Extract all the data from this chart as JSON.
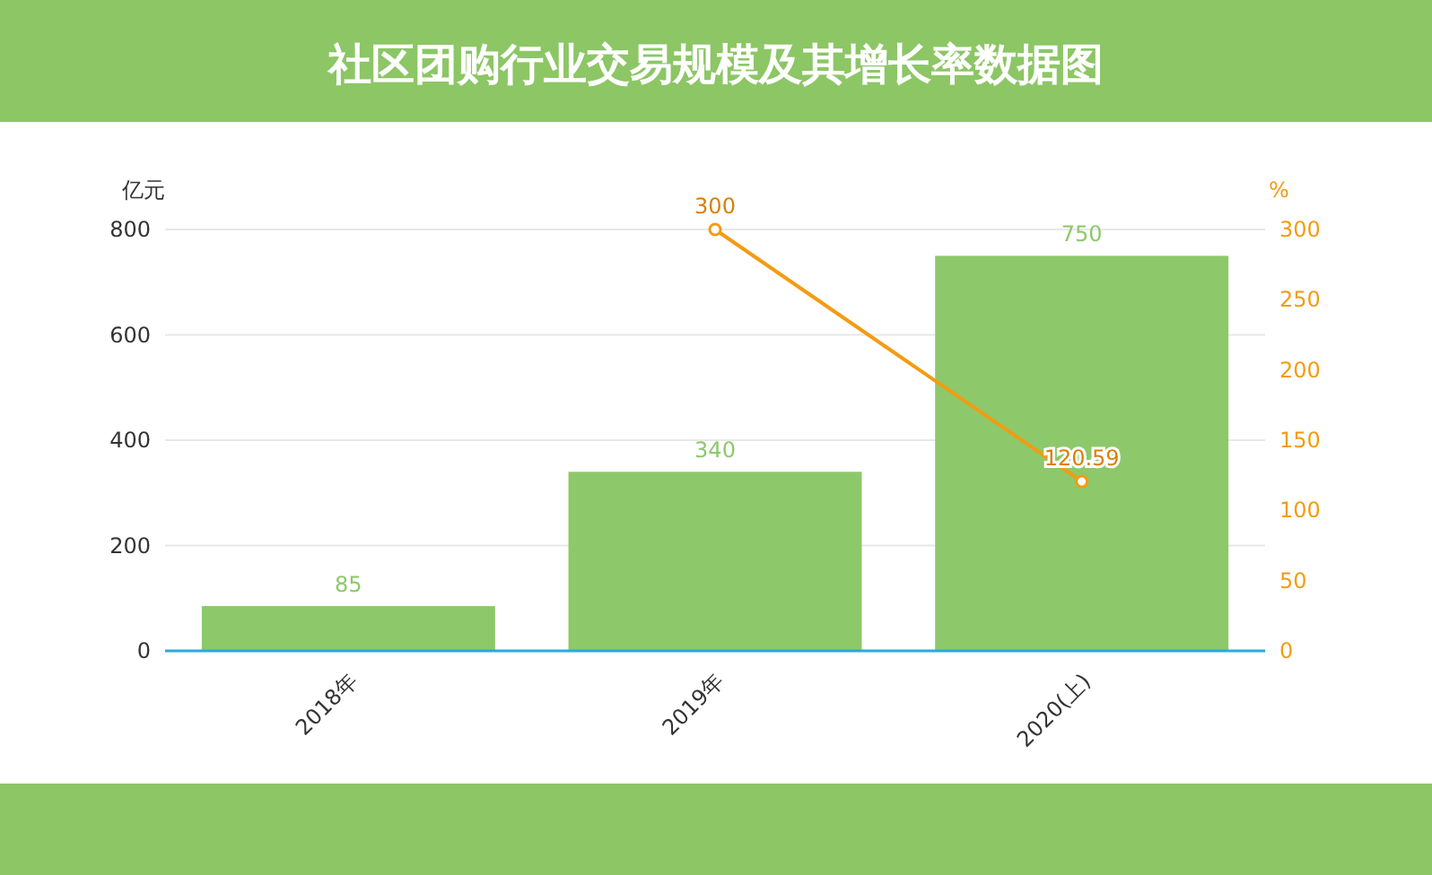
{
  "chart_data": {
    "type": "bar",
    "title": "社区团购行业交易规模及其增长率数据图",
    "ylabel": "亿元",
    "y2label": "%",
    "categories": [
      "2018年",
      "2019年",
      "2020(上)"
    ],
    "series": [
      {
        "color": "#8dc86a",
        "values": [
          85,
          340,
          750
        ]
      },
      {
        "type": "line",
        "axis": "y2",
        "color": "#f39c12",
        "marker": "circle",
        "values": [
          null,
          300,
          120.59
        ]
      }
    ],
    "ylim": [
      0,
      800
    ],
    "yticks": [
      0,
      200,
      400,
      600,
      800
    ],
    "y2lim": [
      0,
      300
    ],
    "y2ticks": [
      0,
      50,
      100,
      150,
      200,
      250,
      300
    ],
    "grid": "y",
    "data_labels": true
  }
}
